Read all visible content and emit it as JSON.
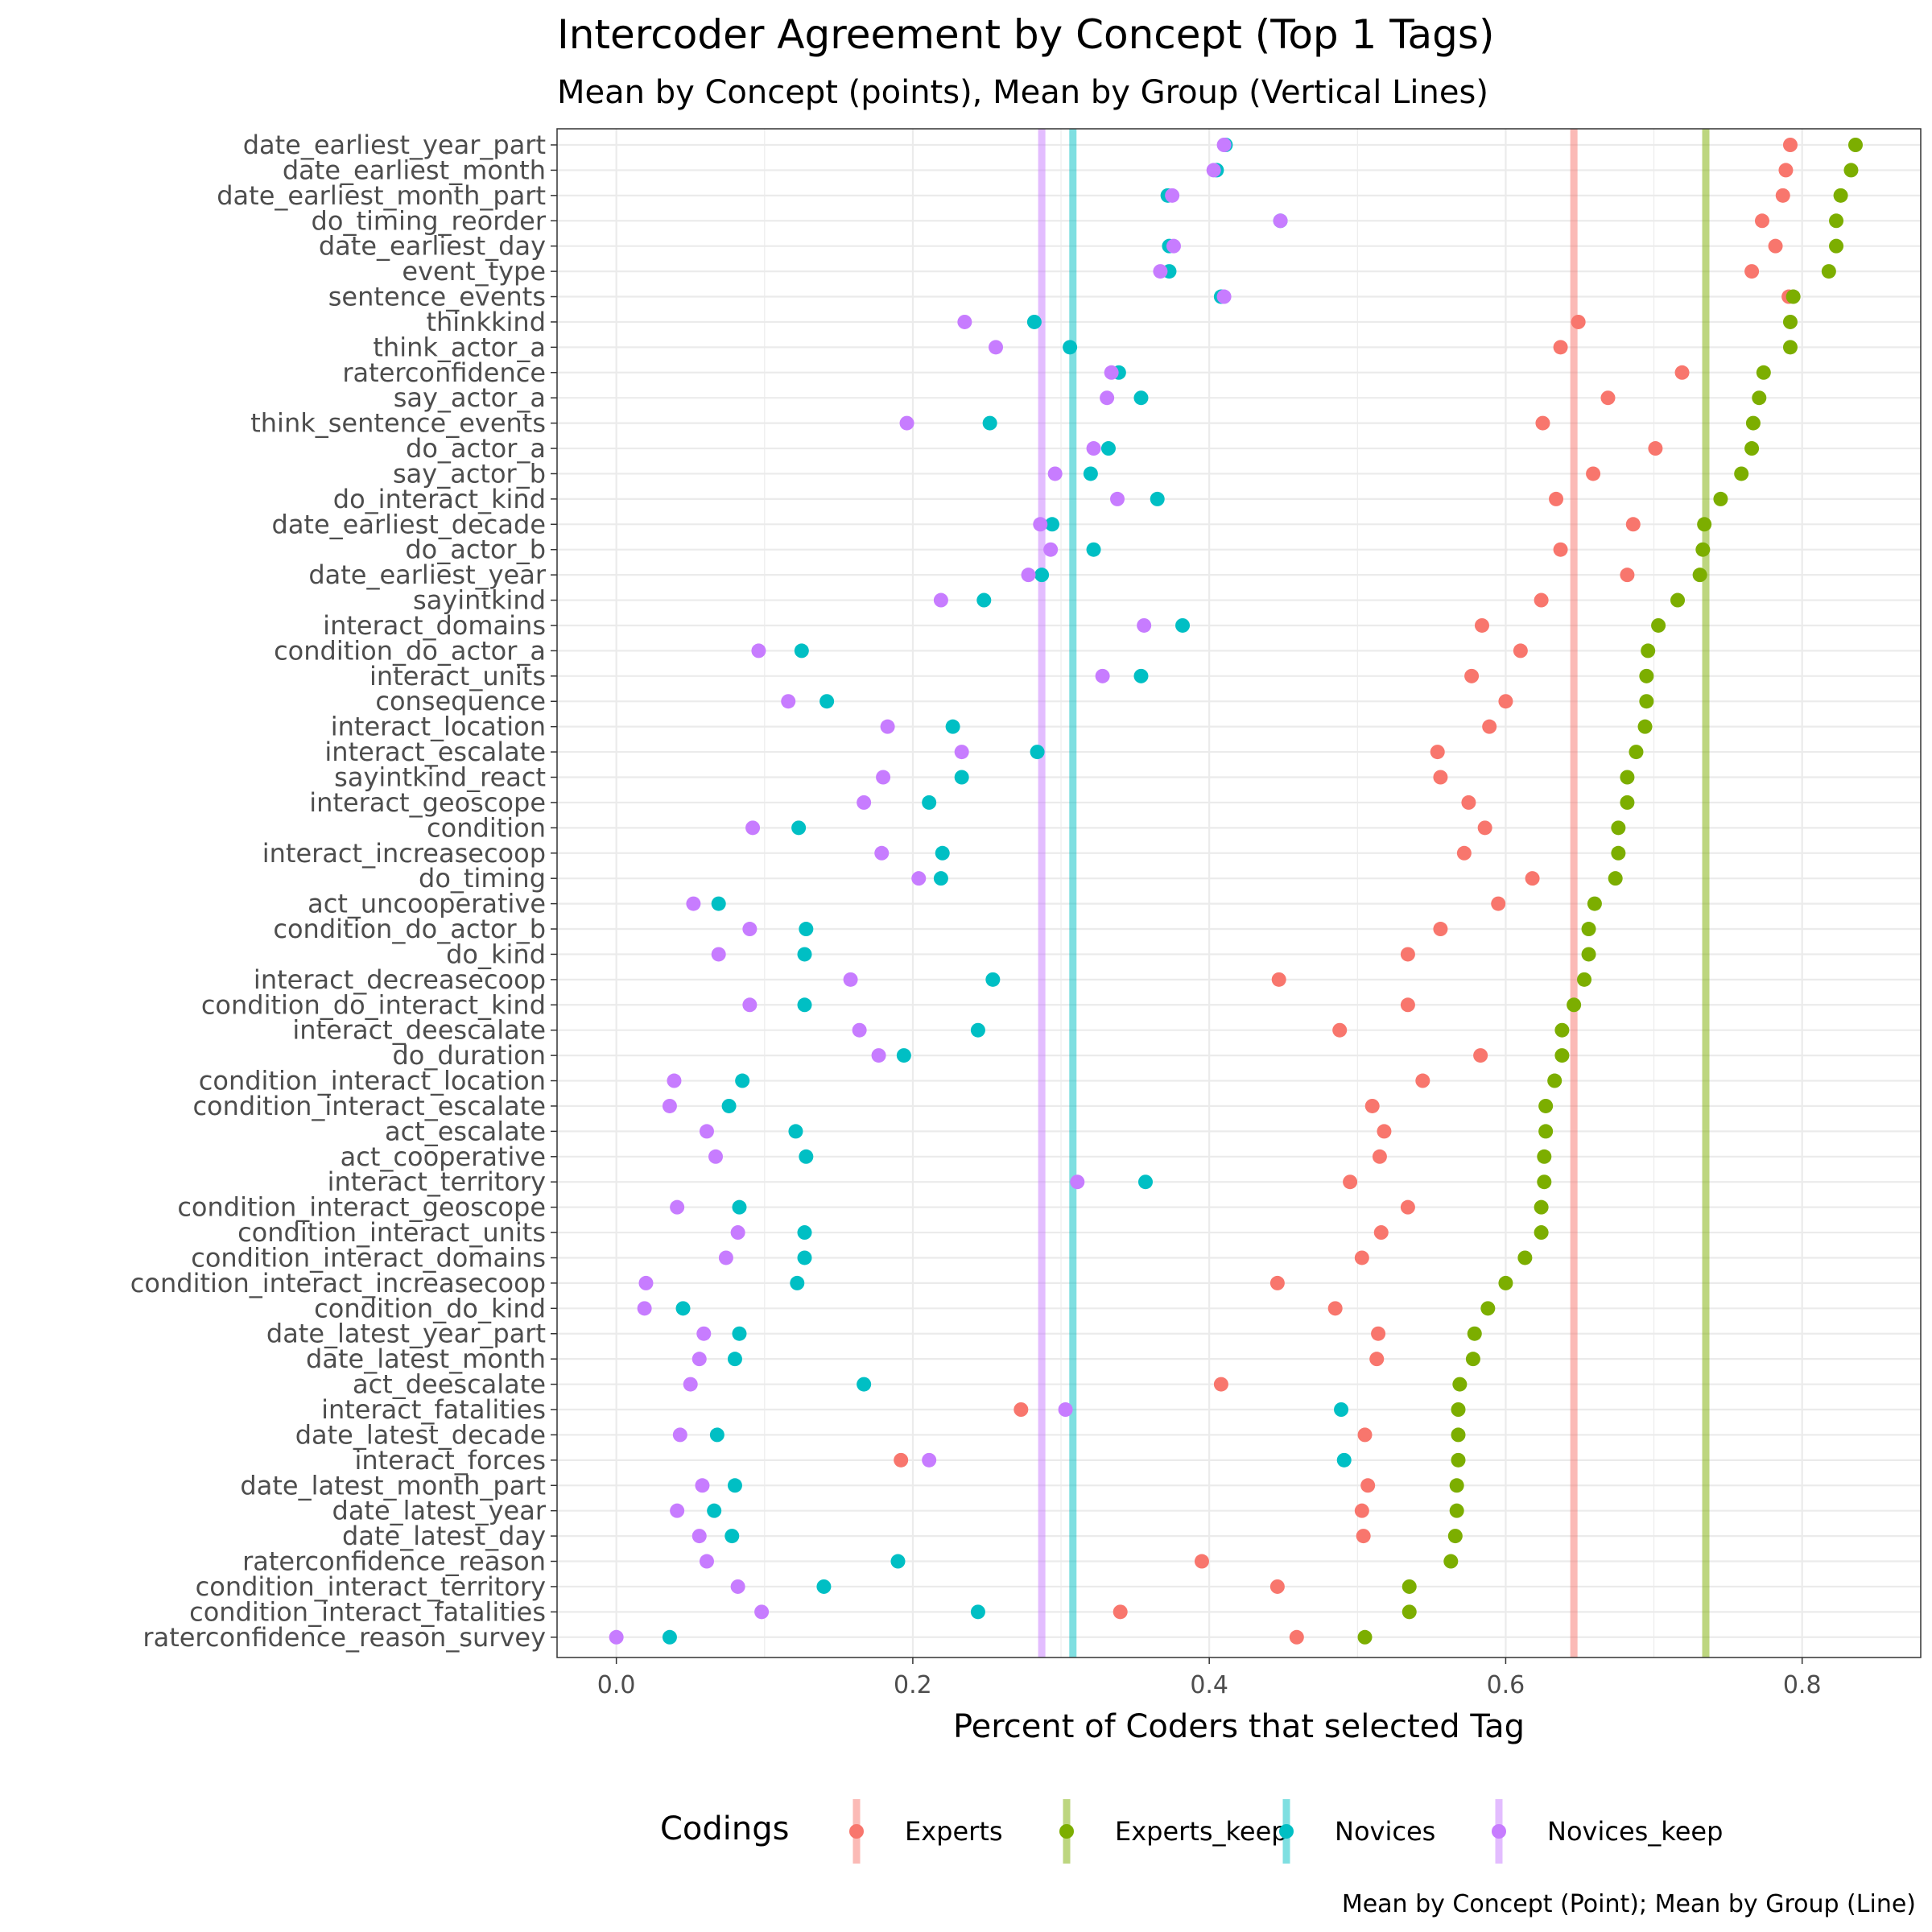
{
  "chart_data": {
    "type": "scatter",
    "title": "Intercoder Agreement by Concept (Top 1 Tags)",
    "subtitle": "Mean by Concept (points), Mean by Group (Vertical Lines)",
    "xlabel": "Percent of Coders that selected Tag",
    "ylabel": "",
    "caption": "Mean by Concept (Point); Mean by Group (Line)",
    "xlim": [
      -0.04,
      0.88
    ],
    "x_ticks": [
      0.0,
      0.2,
      0.4,
      0.6,
      0.8
    ],
    "x_tick_labels": [
      "0.0",
      "0.2",
      "0.4",
      "0.6",
      "0.8"
    ],
    "grid": true,
    "legend": {
      "title": "Codings",
      "position": "bottom"
    },
    "categories": [
      "date_earliest_year_part",
      "date_earliest_month",
      "date_earliest_month_part",
      "do_timing_reorder",
      "date_earliest_day",
      "event_type",
      "sentence_events",
      "thinkkind",
      "think_actor_a",
      "raterconfidence",
      "say_actor_a",
      "think_sentence_events",
      "do_actor_a",
      "say_actor_b",
      "do_interact_kind",
      "date_earliest_decade",
      "do_actor_b",
      "date_earliest_year",
      "sayintkind",
      "interact_domains",
      "condition_do_actor_a",
      "interact_units",
      "consequence",
      "interact_location",
      "interact_escalate",
      "sayintkind_react",
      "interact_geoscope",
      "condition",
      "interact_increasecoop",
      "do_timing",
      "act_uncooperative",
      "condition_do_actor_b",
      "do_kind",
      "interact_decreasecoop",
      "condition_do_interact_kind",
      "interact_deescalate",
      "do_duration",
      "condition_interact_location",
      "condition_interact_escalate",
      "act_escalate",
      "act_cooperative",
      "interact_territory",
      "condition_interact_geoscope",
      "condition_interact_units",
      "condition_interact_domains",
      "condition_interact_increasecoop",
      "condition_do_kind",
      "date_latest_year_part",
      "date_latest_month",
      "act_deescalate",
      "interact_fatalities",
      "date_latest_decade",
      "interact_forces",
      "date_latest_month_part",
      "date_latest_year",
      "date_latest_day",
      "raterconfidence_reason",
      "condition_interact_territory",
      "condition_interact_fatalities",
      "raterconfidence_reason_survey"
    ],
    "series": [
      {
        "name": "Experts",
        "color": "#F8766D",
        "mean": 0.646,
        "values": [
          0.792,
          0.789,
          0.787,
          0.773,
          0.782,
          0.766,
          0.791,
          0.649,
          0.637,
          0.719,
          0.669,
          0.625,
          0.701,
          0.659,
          0.634,
          0.686,
          0.637,
          0.682,
          0.624,
          0.584,
          0.61,
          0.577,
          0.6,
          0.589,
          0.554,
          0.556,
          0.575,
          0.586,
          0.572,
          0.618,
          0.595,
          0.556,
          0.534,
          0.447,
          0.534,
          0.488,
          0.583,
          0.544,
          0.51,
          0.518,
          0.515,
          0.495,
          0.534,
          0.516,
          0.503,
          0.446,
          0.485,
          0.514,
          0.513,
          0.408,
          0.273,
          0.505,
          0.192,
          0.507,
          0.503,
          0.504,
          0.395,
          0.446,
          0.34,
          0.459
        ]
      },
      {
        "name": "Experts_keep",
        "color": "#7CAE00",
        "mean": 0.735,
        "values": [
          0.836,
          0.833,
          0.826,
          0.823,
          0.823,
          0.818,
          0.794,
          0.792,
          0.792,
          0.774,
          0.771,
          0.767,
          0.766,
          0.759,
          0.745,
          0.734,
          0.733,
          0.731,
          0.716,
          0.703,
          0.696,
          0.695,
          0.695,
          0.694,
          0.688,
          0.682,
          0.682,
          0.676,
          0.676,
          0.674,
          0.66,
          0.656,
          0.656,
          0.653,
          0.646,
          0.638,
          0.638,
          0.633,
          0.627,
          0.627,
          0.626,
          0.626,
          0.624,
          0.624,
          0.613,
          0.6,
          0.588,
          0.579,
          0.578,
          0.569,
          0.568,
          0.568,
          0.568,
          0.567,
          0.567,
          0.566,
          0.563,
          0.535,
          0.535,
          0.505
        ]
      },
      {
        "name": "Novices",
        "color": "#00BFC4",
        "mean": 0.308,
        "values": [
          0.411,
          0.405,
          0.372,
          0.448,
          0.373,
          0.373,
          0.408,
          0.282,
          0.306,
          0.339,
          0.354,
          0.252,
          0.332,
          0.32,
          0.365,
          0.294,
          0.322,
          0.287,
          0.248,
          0.382,
          0.125,
          0.354,
          0.142,
          0.227,
          0.284,
          0.233,
          0.211,
          0.123,
          0.22,
          0.219,
          0.069,
          0.128,
          0.127,
          0.254,
          0.127,
          0.244,
          0.194,
          0.085,
          0.076,
          0.121,
          0.128,
          0.357,
          0.083,
          0.127,
          0.127,
          0.122,
          0.045,
          0.083,
          0.08,
          0.167,
          0.489,
          0.068,
          0.491,
          0.08,
          0.066,
          0.078,
          0.19,
          0.14,
          0.244,
          0.036
        ]
      },
      {
        "name": "Novices_keep",
        "color": "#C77CFF",
        "mean": 0.287,
        "values": [
          0.41,
          0.403,
          0.375,
          0.448,
          0.376,
          0.367,
          0.41,
          0.235,
          0.256,
          0.334,
          0.331,
          0.196,
          0.322,
          0.296,
          0.338,
          0.286,
          0.293,
          0.278,
          0.219,
          0.356,
          0.096,
          0.328,
          0.116,
          0.183,
          0.233,
          0.18,
          0.167,
          0.092,
          0.179,
          0.204,
          0.052,
          0.09,
          0.069,
          0.158,
          0.09,
          0.164,
          0.177,
          0.039,
          0.036,
          0.061,
          0.067,
          0.311,
          0.041,
          0.082,
          0.074,
          0.02,
          0.019,
          0.059,
          0.056,
          0.05,
          0.303,
          0.043,
          0.211,
          0.058,
          0.041,
          0.056,
          0.061,
          0.082,
          0.098,
          0.0
        ]
      }
    ]
  }
}
